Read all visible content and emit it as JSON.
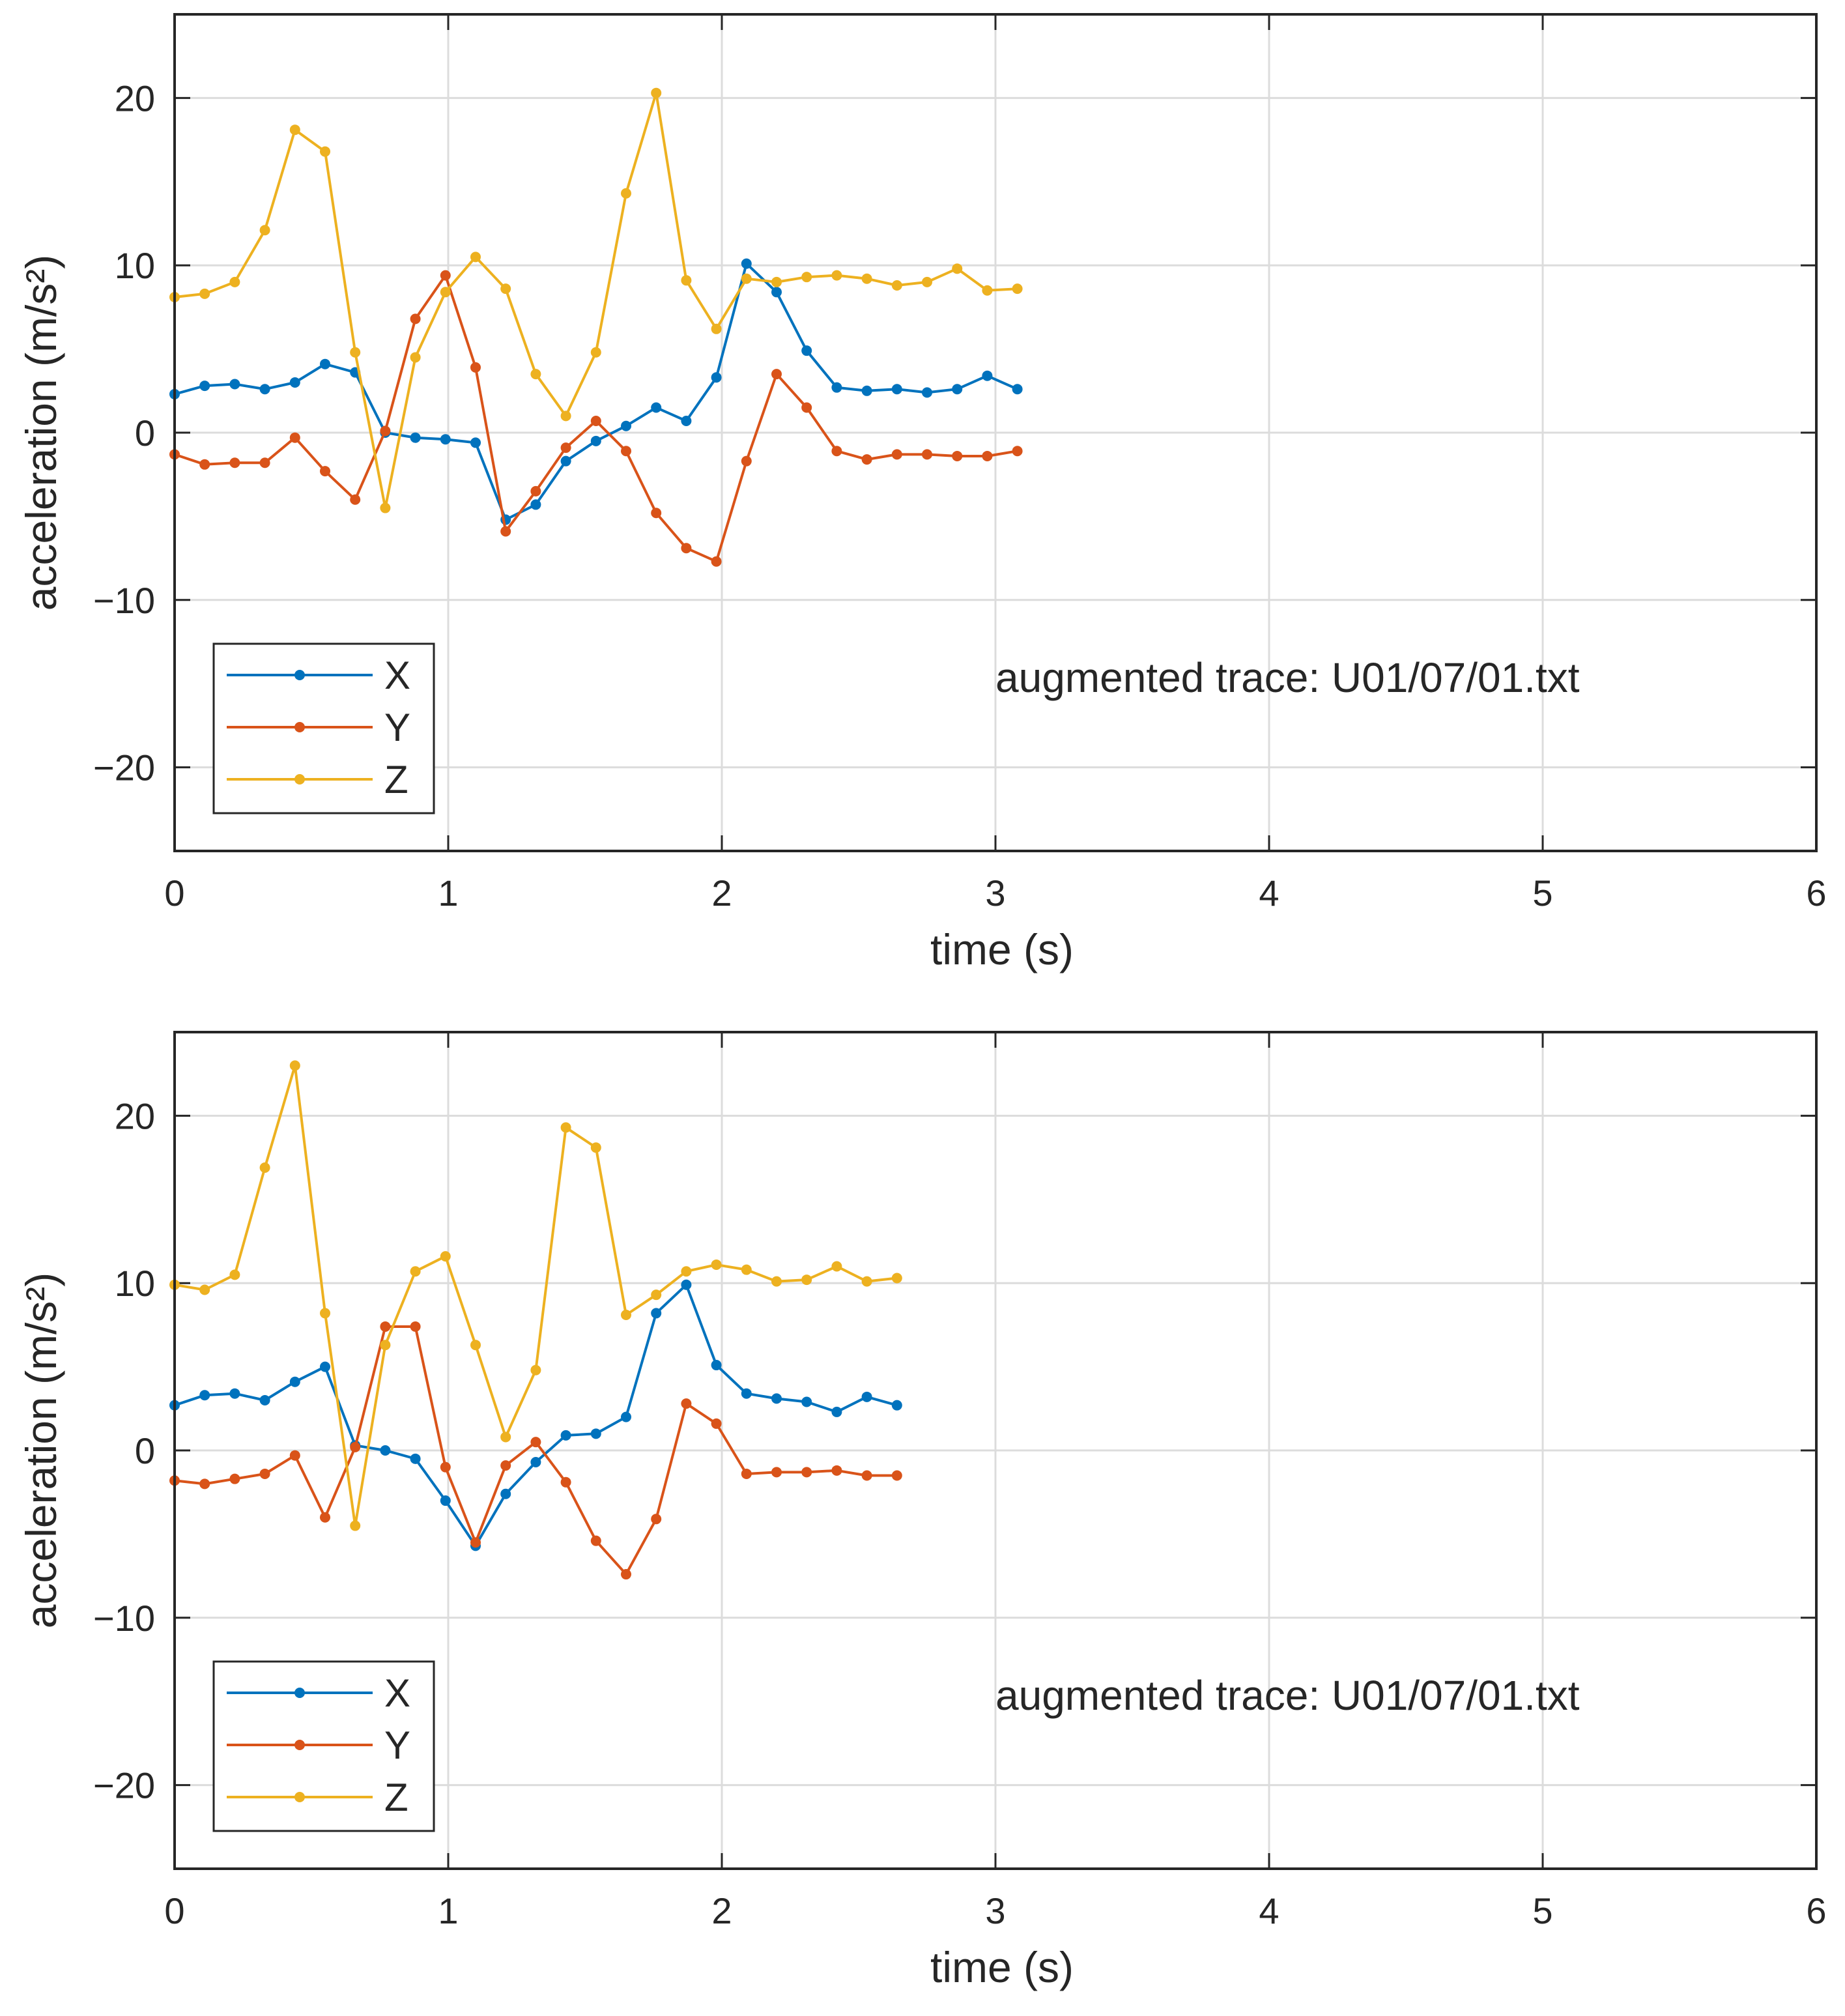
{
  "chart_data": [
    {
      "type": "line",
      "xlabel": "time (s)",
      "ylabel": "acceleration (m/s²)",
      "xlim": [
        0,
        6
      ],
      "ylim": [
        -25,
        25
      ],
      "xticks": [
        0,
        1,
        2,
        3,
        4,
        5,
        6
      ],
      "yticks": [
        -20,
        -10,
        0,
        10,
        20
      ],
      "xtick_labels": [
        "0",
        "1",
        "2",
        "3",
        "4",
        "5",
        "6"
      ],
      "ytick_labels": [
        "−20",
        "−10",
        "0",
        "10",
        "20"
      ],
      "grid": true,
      "legend_position": "bottom-left",
      "annotation": "augmented trace: U01/07/01.txt",
      "series": [
        {
          "name": "X",
          "color": "#0072BD",
          "x": [
            0,
            0.11,
            0.22,
            0.33,
            0.44,
            0.55,
            0.66,
            0.77,
            0.88,
            0.99,
            1.1,
            1.21,
            1.32,
            1.43,
            1.54,
            1.65,
            1.76,
            1.87,
            1.98,
            2.09,
            2.2,
            2.31,
            2.42,
            2.53,
            2.64,
            2.75,
            2.86,
            2.97,
            3.08
          ],
          "y": [
            2.3,
            2.8,
            2.9,
            2.6,
            3.0,
            4.1,
            3.6,
            0.0,
            -0.3,
            -0.4,
            -0.6,
            -5.2,
            -4.3,
            -1.7,
            -0.5,
            0.4,
            1.5,
            0.7,
            3.3,
            10.1,
            8.4,
            4.9,
            2.7,
            2.5,
            2.6,
            2.4,
            2.6,
            3.4,
            2.6
          ]
        },
        {
          "name": "Y",
          "color": "#D95319",
          "x": [
            0,
            0.11,
            0.22,
            0.33,
            0.44,
            0.55,
            0.66,
            0.77,
            0.88,
            0.99,
            1.1,
            1.21,
            1.32,
            1.43,
            1.54,
            1.65,
            1.76,
            1.87,
            1.98,
            2.09,
            2.2,
            2.31,
            2.42,
            2.53,
            2.64,
            2.75,
            2.86,
            2.97,
            3.08
          ],
          "y": [
            -1.3,
            -1.9,
            -1.8,
            -1.8,
            -0.3,
            -2.3,
            -4.0,
            0.1,
            6.8,
            9.4,
            3.9,
            -5.9,
            -3.5,
            -0.9,
            0.7,
            -1.1,
            -4.8,
            -6.9,
            -7.7,
            -1.7,
            3.5,
            1.5,
            -1.1,
            -1.6,
            -1.3,
            -1.3,
            -1.4,
            -1.4,
            -1.1
          ]
        },
        {
          "name": "Z",
          "color": "#EDB120",
          "x": [
            0,
            0.11,
            0.22,
            0.33,
            0.44,
            0.55,
            0.66,
            0.77,
            0.88,
            0.99,
            1.1,
            1.21,
            1.32,
            1.43,
            1.54,
            1.65,
            1.76,
            1.87,
            1.98,
            2.09,
            2.2,
            2.31,
            2.42,
            2.53,
            2.64,
            2.75,
            2.86,
            2.97,
            3.08
          ],
          "y": [
            8.1,
            8.3,
            9.0,
            12.1,
            18.1,
            16.8,
            4.8,
            -4.5,
            4.5,
            8.4,
            10.5,
            8.6,
            3.5,
            1.0,
            4.8,
            14.3,
            20.3,
            9.1,
            6.2,
            9.2,
            9.0,
            9.3,
            9.4,
            9.2,
            8.8,
            9.0,
            9.8,
            8.5,
            8.6
          ]
        }
      ]
    },
    {
      "type": "line",
      "xlabel": "time (s)",
      "ylabel": "acceleration (m/s²)",
      "xlim": [
        0,
        6
      ],
      "ylim": [
        -25,
        25
      ],
      "xticks": [
        0,
        1,
        2,
        3,
        4,
        5,
        6
      ],
      "yticks": [
        -20,
        -10,
        0,
        10,
        20
      ],
      "xtick_labels": [
        "0",
        "1",
        "2",
        "3",
        "4",
        "5",
        "6"
      ],
      "ytick_labels": [
        "−20",
        "−10",
        "0",
        "10",
        "20"
      ],
      "grid": true,
      "legend_position": "bottom-left",
      "annotation": "augmented trace: U01/07/01.txt",
      "series": [
        {
          "name": "X",
          "color": "#0072BD",
          "x": [
            0,
            0.11,
            0.22,
            0.33,
            0.44,
            0.55,
            0.66,
            0.77,
            0.88,
            0.99,
            1.1,
            1.21,
            1.32,
            1.43,
            1.54,
            1.65,
            1.76,
            1.87,
            1.98,
            2.09,
            2.2,
            2.31,
            2.42,
            2.53,
            2.64
          ],
          "y": [
            2.7,
            3.3,
            3.4,
            3.0,
            4.1,
            5.0,
            0.3,
            0.0,
            -0.5,
            -3.0,
            -5.7,
            -2.6,
            -0.7,
            0.9,
            1.0,
            2.0,
            8.2,
            9.9,
            5.1,
            3.4,
            3.1,
            2.9,
            2.3,
            3.2,
            2.7
          ]
        },
        {
          "name": "Y",
          "color": "#D95319",
          "x": [
            0,
            0.11,
            0.22,
            0.33,
            0.44,
            0.55,
            0.66,
            0.77,
            0.88,
            0.99,
            1.1,
            1.21,
            1.32,
            1.43,
            1.54,
            1.65,
            1.76,
            1.87,
            1.98,
            2.09,
            2.2,
            2.31,
            2.42,
            2.53,
            2.64
          ],
          "y": [
            -1.8,
            -2.0,
            -1.7,
            -1.4,
            -0.3,
            -4.0,
            0.2,
            7.4,
            7.4,
            -1.0,
            -5.5,
            -0.9,
            0.5,
            -1.9,
            -5.4,
            -7.4,
            -4.1,
            2.8,
            1.6,
            -1.4,
            -1.3,
            -1.3,
            -1.2,
            -1.5,
            -1.5
          ]
        },
        {
          "name": "Z",
          "color": "#EDB120",
          "x": [
            0,
            0.11,
            0.22,
            0.33,
            0.44,
            0.55,
            0.66,
            0.77,
            0.88,
            0.99,
            1.1,
            1.21,
            1.32,
            1.43,
            1.54,
            1.65,
            1.76,
            1.87,
            1.98,
            2.09,
            2.2,
            2.31,
            2.42,
            2.53,
            2.64
          ],
          "y": [
            9.9,
            9.6,
            10.5,
            16.9,
            23.0,
            8.2,
            -4.5,
            6.3,
            10.7,
            11.6,
            6.3,
            0.8,
            4.8,
            19.3,
            18.1,
            8.1,
            9.3,
            10.7,
            11.1,
            10.8,
            10.1,
            10.2,
            11.0,
            10.1,
            10.3
          ]
        }
      ]
    }
  ]
}
